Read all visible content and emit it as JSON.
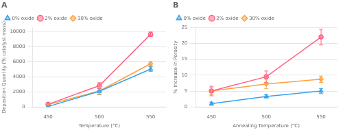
{
  "chart_data": [
    {
      "type": "line",
      "title": "A",
      "x_label": "Temperature (°C)",
      "y_label": "Deposition Quantity (% catalyst mass)",
      "x": [
        450,
        500,
        550
      ],
      "series": [
        {
          "name": "0% oxide",
          "values": [
            50,
            2050,
            5000
          ],
          "errors": [
            50,
            350,
            300
          ],
          "marker": "triangle",
          "line_style": "solid"
        },
        {
          "name": "2% oxide",
          "values": [
            350,
            2800,
            9600
          ],
          "errors": [
            100,
            400,
            300
          ],
          "marker": "circle",
          "line_style": "solid"
        },
        {
          "name": "30% oxide",
          "values": [
            300,
            2100,
            5700
          ],
          "errors": [
            80,
            500,
            300
          ],
          "marker": "diamond",
          "line_style": "solid"
        }
      ],
      "xlim": [
        435,
        565
      ],
      "xticks": [
        450,
        500,
        550
      ],
      "ylim": [
        0,
        10500
      ],
      "yticks": [
        0,
        2000,
        4000,
        6000,
        8000,
        10000
      ],
      "grid": "y",
      "legend": "upper left"
    },
    {
      "type": "line",
      "title": "B",
      "x_label": "Annealing Temperature (°C)",
      "y_label": "% Increase in Porosity",
      "x": [
        450,
        500,
        550
      ],
      "series": [
        {
          "name": "0% oxide",
          "values": [
            1.0,
            3.3,
            5.0
          ],
          "errors": [
            0.5,
            0.5,
            0.8
          ],
          "marker": "triangle",
          "line_style": "solid"
        },
        {
          "name": "2% oxide",
          "values": [
            5.0,
            9.5,
            22.0
          ],
          "errors": [
            1.5,
            1.8,
            2.5
          ],
          "marker": "circle",
          "line_style": "solid"
        },
        {
          "name": "30% oxide",
          "values": [
            5.0,
            7.2,
            8.7
          ],
          "errors": [
            1.2,
            1.5,
            1.0
          ],
          "marker": "diamond",
          "line_style": "solid"
        }
      ],
      "xlim": [
        435,
        565
      ],
      "xticks": [
        450,
        500,
        550
      ],
      "ylim": [
        0,
        25
      ],
      "yticks": [
        0,
        5,
        10,
        15,
        20,
        25
      ],
      "grid": "y",
      "legend": "upper left"
    }
  ]
}
